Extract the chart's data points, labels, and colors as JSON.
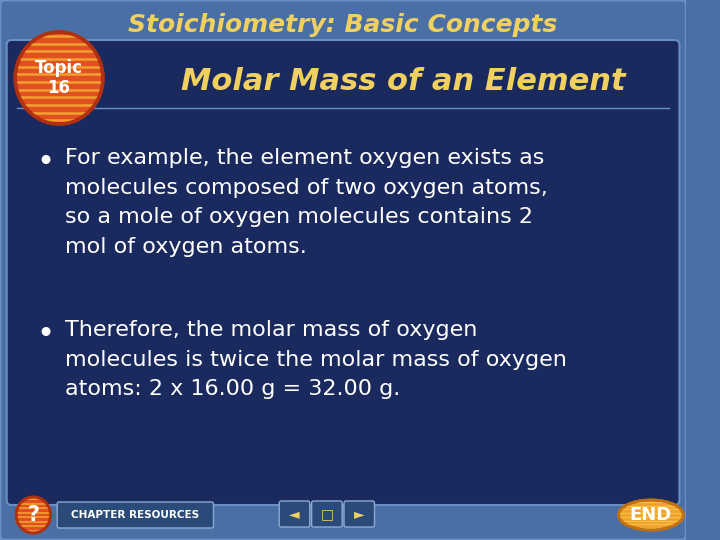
{
  "bg_outer_color": "#4a6fa5",
  "bg_inner_color": "#1a2a5e",
  "title_text": "Stoichiometry: Basic Concepts",
  "title_color": "#f0d060",
  "title_fontsize": 18,
  "topic_circle_bg": "#e05020",
  "topic_circle_stripe": "#f0a030",
  "topic_text": "Topic\n16",
  "topic_text_color": "#ffffff",
  "subtitle_text": "Molar Mass of an Element",
  "subtitle_color": "#f0d060",
  "subtitle_fontsize": 22,
  "bullet1": "For example, the element oxygen exists as\nmolecules composed of two oxygen atoms,\nso a mole of oxygen molecules contains 2\nmol of oxygen atoms.",
  "bullet2": "Therefore, the molar mass of oxygen\nmolecules is twice the molar mass of oxygen\natoms: 2 x 16.00 g = 32.00 g.",
  "bullet_color": "#ffffff",
  "bullet_fontsize": 16,
  "chapter_resources_text": "CHAPTER RESOURCES",
  "chapter_resources_color": "#ffffff",
  "nav_symbols": [
    "◄",
    "□",
    "►"
  ],
  "end_text": "END",
  "end_bg_color": "#f0a030",
  "end_text_color": "#ffffff",
  "q_text": "?",
  "inner_border_color": "#6a8fc5",
  "nav_bg_color": "#2a4a7a",
  "nav_border_color": "#8aaad0"
}
